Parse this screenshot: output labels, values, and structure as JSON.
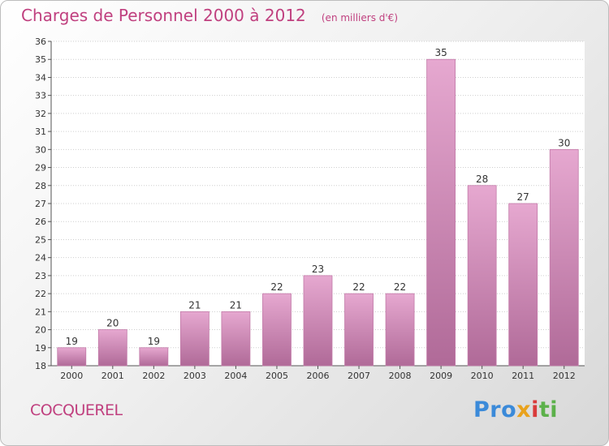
{
  "header": {
    "title": "Charges de Personnel 2000 à 2012",
    "subtitle": "(en milliers d'€)"
  },
  "footer": {
    "commune": "COCQUEREL",
    "brand_parts": [
      "Pro",
      "x",
      "i",
      "ti"
    ]
  },
  "colors": {
    "bar_light": "#e6a8d0",
    "bar_dark": "#b06a98",
    "axis": "#555555",
    "grid": "#cfcfcf",
    "title": "#c0407f"
  },
  "chart_data": {
    "type": "bar",
    "title": "Charges de Personnel 2000 à 2012",
    "subtitle": "(en milliers d'€)",
    "categories": [
      "2000",
      "2001",
      "2002",
      "2003",
      "2004",
      "2005",
      "2006",
      "2007",
      "2008",
      "2009",
      "2010",
      "2011",
      "2012"
    ],
    "values": [
      19,
      20,
      19,
      21,
      21,
      22,
      23,
      22,
      22,
      35,
      28,
      27,
      30
    ],
    "ylim": [
      18,
      36
    ],
    "yticks": [
      18,
      19,
      20,
      21,
      22,
      23,
      24,
      25,
      26,
      27,
      28,
      29,
      30,
      31,
      32,
      33,
      34,
      35,
      36
    ],
    "grid": true,
    "data_labels": true,
    "legend": "none"
  }
}
